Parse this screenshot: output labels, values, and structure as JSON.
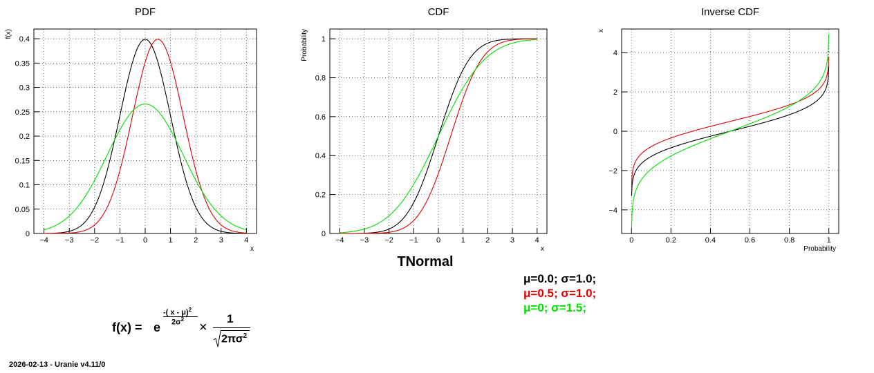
{
  "panels": [
    {
      "title": "PDF",
      "xlabel": "x",
      "ylabel": "f(x)"
    },
    {
      "title": "CDF",
      "xlabel": "x",
      "ylabel": "Probability"
    },
    {
      "title": "Inverse CDF",
      "xlabel": "Probability",
      "ylabel": "x"
    }
  ],
  "main_title": "TNormal",
  "legend": [
    {
      "label": "μ=0.0;  σ=1.0;",
      "color": "#000000"
    },
    {
      "label": "μ=0.5;  σ=1.0;",
      "color": "#e00000"
    },
    {
      "label": "μ=0;  σ=1.5;",
      "color": "#00e000"
    }
  ],
  "formula": {
    "lhs": "f(x) =",
    "base": "e",
    "exp_num": "-( x - μ)",
    "exp_num_sup": "2",
    "exp_den": "2σ",
    "exp_den_sup": "2",
    "times": "×",
    "frac_num": "1",
    "frac_den": "2πσ",
    "frac_den_sup": "2"
  },
  "footer": "2026-02-13 - Uranie v4.11/0",
  "chart_data": [
    {
      "type": "line",
      "title": "PDF",
      "xlabel": "x",
      "ylabel": "f(x)",
      "xlim": [
        -4.4,
        4.4
      ],
      "ylim": [
        0,
        0.42
      ],
      "grid": true,
      "xticks": [
        "−4",
        "−3",
        "−2",
        "−1",
        "0",
        "1",
        "2",
        "3",
        "4"
      ],
      "yticks": [
        "0",
        "0.05",
        "0.1",
        "0.15",
        "0.2",
        "0.25",
        "0.3",
        "0.35",
        "0.4"
      ],
      "series": [
        {
          "mu": 0.0,
          "sigma": 1.0,
          "color": "#000000",
          "x": [
            -4,
            -3,
            -2,
            -1,
            0,
            1,
            2,
            3,
            4
          ],
          "y": [
            0.0001,
            0.0044,
            0.054,
            0.242,
            0.399,
            0.242,
            0.054,
            0.0044,
            0.0001
          ]
        },
        {
          "mu": 0.5,
          "sigma": 1.0,
          "color": "#e00000",
          "x": [
            -3.5,
            -2.5,
            -1.5,
            -0.5,
            0.5,
            1.5,
            2.5,
            3.5
          ],
          "y": [
            0.0001,
            0.0044,
            0.054,
            0.242,
            0.399,
            0.242,
            0.054,
            0.0044
          ]
        },
        {
          "mu": 0.0,
          "sigma": 1.5,
          "color": "#00e000",
          "x": [
            -4,
            -3,
            -2,
            -1,
            0,
            1,
            2,
            3,
            4
          ],
          "y": [
            0.0076,
            0.036,
            0.109,
            0.213,
            0.266,
            0.213,
            0.109,
            0.036,
            0.0076
          ]
        }
      ]
    },
    {
      "type": "line",
      "title": "CDF",
      "xlabel": "x",
      "ylabel": "Probability",
      "xlim": [
        -4.4,
        4.4
      ],
      "ylim": [
        0,
        1.05
      ],
      "grid": true,
      "xticks": [
        "−4",
        "−3",
        "−2",
        "−1",
        "0",
        "1",
        "2",
        "3",
        "4"
      ],
      "yticks": [
        "0",
        "0.2",
        "0.4",
        "0.6",
        "0.8",
        "1"
      ],
      "series": [
        {
          "mu": 0.0,
          "sigma": 1.0,
          "color": "#000000",
          "x": [
            -4,
            -3,
            -2,
            -1,
            0,
            1,
            2,
            3,
            4
          ],
          "y": [
            0.0,
            0.001,
            0.023,
            0.159,
            0.5,
            0.841,
            0.977,
            0.999,
            1.0
          ]
        },
        {
          "mu": 0.5,
          "sigma": 1.0,
          "color": "#e00000",
          "x": [
            -3.5,
            -2.5,
            -1.5,
            -0.5,
            0.5,
            1.5,
            2.5,
            3.5,
            4
          ],
          "y": [
            0.0,
            0.001,
            0.023,
            0.159,
            0.5,
            0.841,
            0.977,
            0.999,
            1.0
          ]
        },
        {
          "mu": 0.0,
          "sigma": 1.5,
          "color": "#00e000",
          "x": [
            -4,
            -3,
            -2,
            -1,
            0,
            1,
            2,
            3,
            4
          ],
          "y": [
            0.004,
            0.023,
            0.091,
            0.252,
            0.5,
            0.748,
            0.909,
            0.977,
            0.996
          ]
        }
      ]
    },
    {
      "type": "line",
      "title": "Inverse CDF",
      "xlabel": "Probability",
      "ylabel": "x",
      "xlim": [
        -0.05,
        1.05
      ],
      "ylim": [
        -5.2,
        5.2
      ],
      "grid": true,
      "xticks": [
        "0",
        "0.2",
        "0.4",
        "0.6",
        "0.8",
        "1"
      ],
      "yticks": [
        "−4",
        "−2",
        "0",
        "2",
        "4"
      ],
      "series": [
        {
          "mu": 0.0,
          "sigma": 1.0,
          "color": "#000000",
          "x": [
            0.001,
            0.1,
            0.3,
            0.5,
            0.7,
            0.9,
            0.999
          ],
          "y": [
            -3.09,
            -1.28,
            -0.52,
            0.0,
            0.52,
            1.28,
            3.09
          ]
        },
        {
          "mu": 0.5,
          "sigma": 1.0,
          "color": "#e00000",
          "x": [
            0.001,
            0.1,
            0.3,
            0.5,
            0.7,
            0.9,
            0.999
          ],
          "y": [
            -2.59,
            -0.78,
            -0.02,
            0.5,
            1.02,
            1.78,
            3.59
          ]
        },
        {
          "mu": 0.0,
          "sigma": 1.5,
          "color": "#00e000",
          "x": [
            0.001,
            0.1,
            0.3,
            0.5,
            0.7,
            0.9,
            0.999
          ],
          "y": [
            -4.64,
            -1.92,
            -0.79,
            0.0,
            0.79,
            1.92,
            4.64
          ]
        }
      ]
    }
  ]
}
